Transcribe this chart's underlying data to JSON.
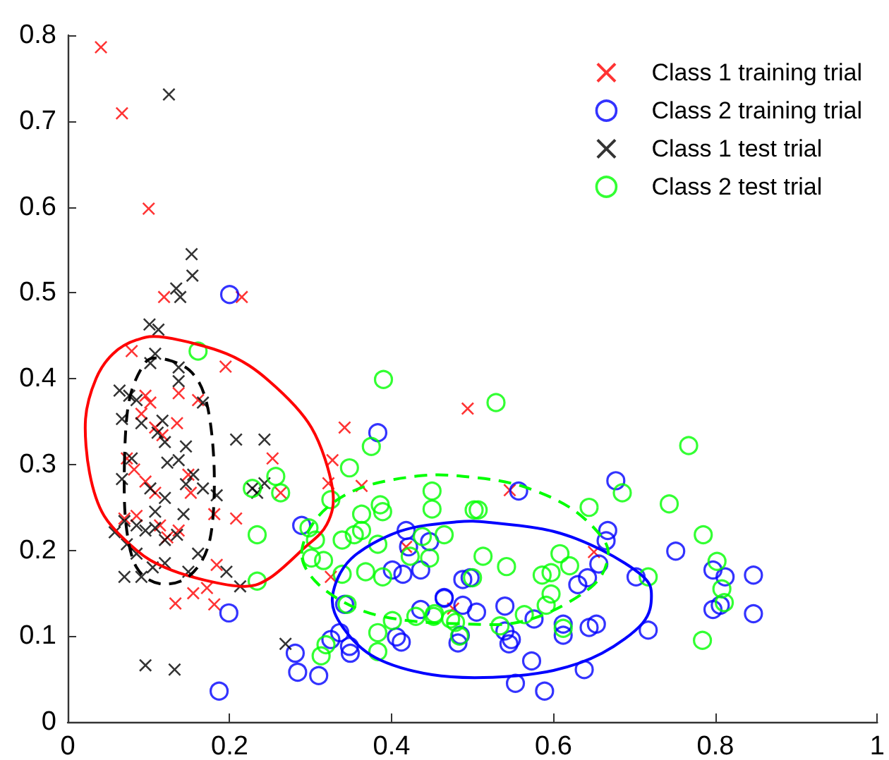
{
  "chart_data": {
    "type": "scatter",
    "xlim": [
      0,
      1
    ],
    "xticks": [
      0,
      0.2,
      0.4,
      0.6,
      0.8,
      1
    ],
    "ylim": [
      0,
      0.8
    ],
    "yticks": [
      0,
      0.1,
      0.2,
      0.3,
      0.4,
      0.5,
      0.6,
      0.7,
      0.8
    ],
    "grid": false,
    "legend": "top right",
    "series": [
      {
        "name": "Class 1 training trial",
        "color": "#ff0000",
        "marker": "cross",
        "x": [
          0.041,
          0.067,
          0.1,
          0.119,
          0.215,
          0.079,
          0.195,
          0.137,
          0.161,
          0.096,
          0.102,
          0.091,
          0.108,
          0.135,
          0.117,
          0.073,
          0.082,
          0.096,
          0.149,
          0.108,
          0.152,
          0.342,
          0.253,
          0.263,
          0.327,
          0.322,
          0.363,
          0.181,
          0.208,
          0.07,
          0.085,
          0.114,
          0.137,
          0.123,
          0.184,
          0.155,
          0.172,
          0.181,
          0.133,
          0.325,
          0.418,
          0.494,
          0.546,
          0.65,
          0.476
        ],
        "values": [
          0.786,
          0.709,
          0.598,
          0.495,
          0.495,
          0.432,
          0.414,
          0.383,
          0.375,
          0.38,
          0.372,
          0.359,
          0.343,
          0.348,
          0.334,
          0.307,
          0.294,
          0.28,
          0.288,
          0.267,
          0.267,
          0.343,
          0.307,
          0.267,
          0.305,
          0.278,
          0.275,
          0.242,
          0.237,
          0.237,
          0.24,
          0.229,
          0.223,
          0.215,
          0.183,
          0.15,
          0.156,
          0.137,
          0.138,
          0.169,
          0.204,
          0.365,
          0.27,
          0.198,
          0.132
        ]
      },
      {
        "name": "Class 2 training trial",
        "color": "#0000ff",
        "marker": "circle",
        "x": [
          0.2,
          0.199,
          0.187,
          0.289,
          0.383,
          0.281,
          0.284,
          0.31,
          0.325,
          0.336,
          0.348,
          0.349,
          0.342,
          0.401,
          0.418,
          0.421,
          0.436,
          0.447,
          0.406,
          0.412,
          0.465,
          0.436,
          0.677,
          0.557,
          0.667,
          0.665,
          0.656,
          0.751,
          0.702,
          0.797,
          0.812,
          0.847,
          0.797,
          0.806,
          0.847,
          0.717,
          0.638,
          0.589,
          0.553,
          0.573,
          0.612,
          0.612,
          0.644,
          0.653,
          0.63,
          0.642,
          0.576,
          0.54,
          0.54,
          0.548,
          0.545,
          0.505,
          0.488,
          0.465,
          0.488,
          0.497,
          0.485,
          0.482,
          0.414
        ],
        "values": [
          0.498,
          0.127,
          0.036,
          0.229,
          0.337,
          0.08,
          0.058,
          0.054,
          0.096,
          0.104,
          0.088,
          0.08,
          0.137,
          0.177,
          0.223,
          0.204,
          0.177,
          0.21,
          0.099,
          0.093,
          0.145,
          0.131,
          0.281,
          0.269,
          0.223,
          0.211,
          0.184,
          0.199,
          0.169,
          0.177,
          0.169,
          0.171,
          0.131,
          0.136,
          0.126,
          0.107,
          0.061,
          0.036,
          0.045,
          0.071,
          0.114,
          0.101,
          0.11,
          0.114,
          0.16,
          0.168,
          0.12,
          0.135,
          0.106,
          0.096,
          0.091,
          0.128,
          0.136,
          0.144,
          0.166,
          0.168,
          0.101,
          0.092,
          0.172
        ]
      },
      {
        "name": "Class 1 test trial",
        "color": "#000000",
        "marker": "cross",
        "x": [
          0.125,
          0.153,
          0.154,
          0.134,
          0.139,
          0.101,
          0.112,
          0.108,
          0.102,
          0.137,
          0.137,
          0.167,
          0.064,
          0.076,
          0.085,
          0.091,
          0.117,
          0.111,
          0.12,
          0.067,
          0.146,
          0.208,
          0.243,
          0.067,
          0.079,
          0.123,
          0.137,
          0.155,
          0.102,
          0.12,
          0.184,
          0.167,
          0.146,
          0.228,
          0.243,
          0.234,
          0.108,
          0.143,
          0.07,
          0.085,
          0.096,
          0.108,
          0.058,
          0.12,
          0.135,
          0.073,
          0.085,
          0.161,
          0.07,
          0.091,
          0.105,
          0.12,
          0.149,
          0.196,
          0.213,
          0.269,
          0.096,
          0.132
        ],
        "values": [
          0.731,
          0.545,
          0.52,
          0.505,
          0.495,
          0.463,
          0.457,
          0.429,
          0.418,
          0.413,
          0.397,
          0.372,
          0.386,
          0.38,
          0.375,
          0.348,
          0.351,
          0.337,
          0.326,
          0.353,
          0.321,
          0.329,
          0.329,
          0.283,
          0.307,
          0.302,
          0.305,
          0.288,
          0.272,
          0.261,
          0.264,
          0.272,
          0.277,
          0.272,
          0.278,
          0.267,
          0.245,
          0.242,
          0.234,
          0.229,
          0.223,
          0.226,
          0.221,
          0.212,
          0.218,
          0.207,
          0.196,
          0.196,
          0.169,
          0.169,
          0.18,
          0.185,
          0.175,
          0.175,
          0.158,
          0.091,
          0.066,
          0.061
        ]
      },
      {
        "name": "Class 2 test trial",
        "color": "#00ff00",
        "marker": "circle",
        "x": [
          0.161,
          0.39,
          0.375,
          0.348,
          0.257,
          0.228,
          0.263,
          0.325,
          0.363,
          0.386,
          0.389,
          0.45,
          0.45,
          0.465,
          0.339,
          0.354,
          0.363,
          0.383,
          0.298,
          0.306,
          0.301,
          0.316,
          0.368,
          0.389,
          0.339,
          0.345,
          0.447,
          0.453,
          0.234,
          0.234,
          0.383,
          0.401,
          0.43,
          0.319,
          0.313,
          0.383,
          0.529,
          0.767,
          0.685,
          0.644,
          0.743,
          0.502,
          0.507,
          0.438,
          0.423,
          0.513,
          0.542,
          0.5,
          0.586,
          0.597,
          0.608,
          0.62,
          0.597,
          0.591,
          0.785,
          0.802,
          0.808,
          0.811,
          0.717,
          0.784,
          0.564,
          0.534,
          0.473,
          0.452,
          0.479,
          0.612,
          0.484
        ],
        "values": [
          0.432,
          0.399,
          0.321,
          0.296,
          0.286,
          0.272,
          0.267,
          0.259,
          0.242,
          0.253,
          0.245,
          0.269,
          0.248,
          0.218,
          0.212,
          0.218,
          0.223,
          0.207,
          0.226,
          0.212,
          0.191,
          0.188,
          0.175,
          0.169,
          0.172,
          0.137,
          0.191,
          0.126,
          0.218,
          0.164,
          0.104,
          0.118,
          0.123,
          0.09,
          0.077,
          0.082,
          0.372,
          0.322,
          0.267,
          0.25,
          0.254,
          0.247,
          0.247,
          0.216,
          0.193,
          0.193,
          0.181,
          0.168,
          0.171,
          0.174,
          0.196,
          0.182,
          0.149,
          0.136,
          0.218,
          0.187,
          0.155,
          0.139,
          0.169,
          0.095,
          0.125,
          0.112,
          0.12,
          0.123,
          0.116,
          0.109,
          0.1
        ]
      }
    ]
  }
}
